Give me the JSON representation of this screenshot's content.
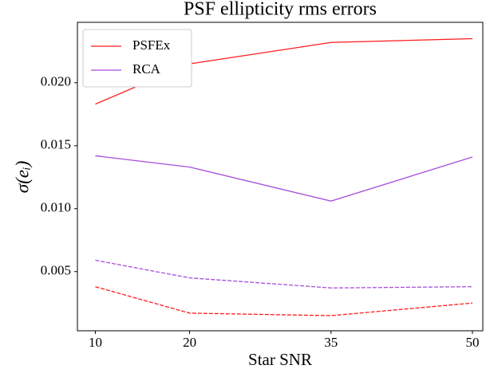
{
  "chart_data": {
    "type": "line",
    "title": "PSF ellipticity rms errors",
    "xlabel": "Star SNR",
    "ylabel": "σ(eᵢ)",
    "x": [
      10,
      20,
      35,
      50
    ],
    "series": [
      {
        "name": "PSFEx",
        "color": "#ff1a1a",
        "values": [
          0.0183,
          0.0215,
          0.0232,
          0.0235
        ]
      },
      {
        "name": "RCA",
        "color": "#a64ddb",
        "values": [
          0.0142,
          0.0133,
          0.0106,
          0.0141
        ]
      },
      {
        "color": "#a64ddb",
        "dashed": true,
        "values": [
          0.0059,
          0.0045,
          0.0037,
          0.0038
        ]
      },
      {
        "color": "#ff1a1a",
        "dashed": true,
        "values": [
          0.0038,
          0.0017,
          0.0015,
          0.0025
        ]
      }
    ],
    "xlim": [
      8.1,
      51.1
    ],
    "ylim": [
      0.0003,
      0.0248
    ],
    "xticks": [
      10,
      20,
      35,
      50
    ],
    "yticks": [
      0.005,
      {
        "value": 0.01,
        "label": "0.010"
      },
      0.015,
      {
        "value": 0.02,
        "label": "0.020"
      }
    ],
    "legend": "upper left"
  }
}
